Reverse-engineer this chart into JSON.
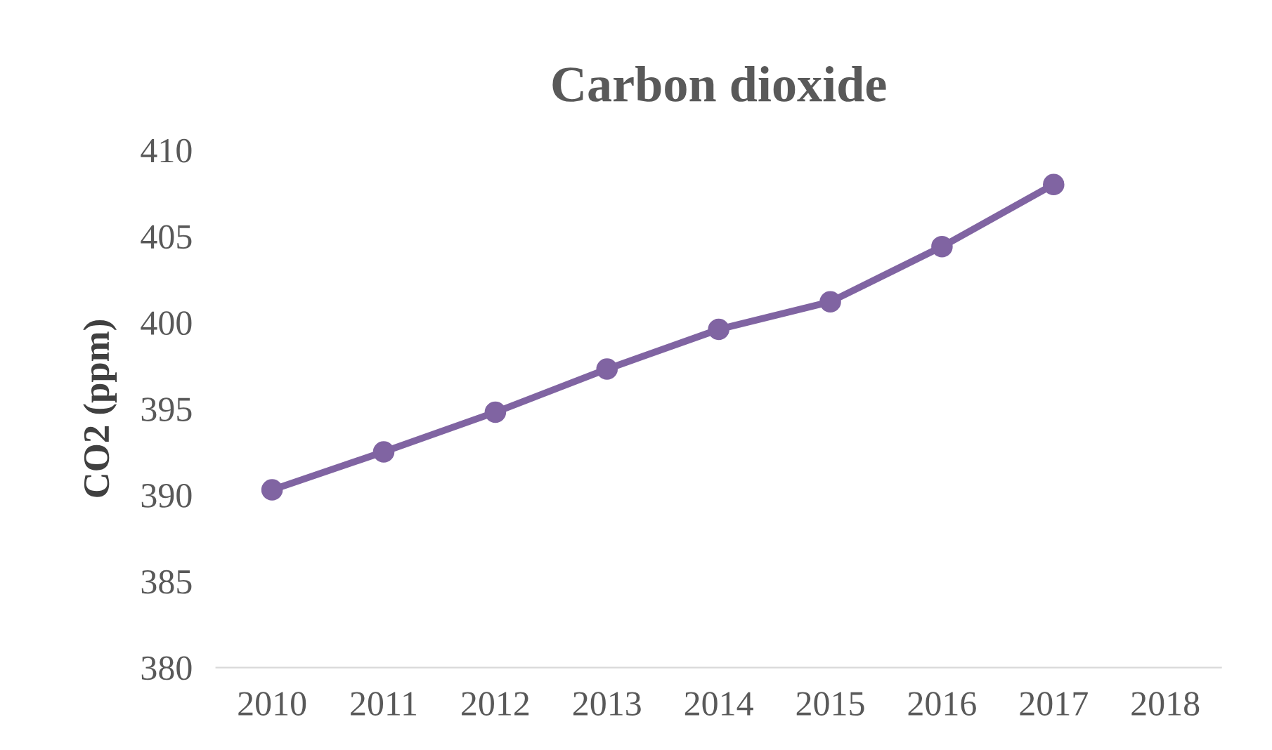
{
  "chart_data": {
    "type": "line",
    "title": "Carbon dioxide",
    "ylabel": "CO2 (ppm)",
    "categories": [
      "2010",
      "2011",
      "2012",
      "2013",
      "2014",
      "2015",
      "2016",
      "2017",
      "2018"
    ],
    "series": [
      {
        "color": "#8064a2",
        "values": [
          390.3,
          392.5,
          394.8,
          397.3,
          399.6,
          401.2,
          404.4,
          408.0,
          null
        ]
      }
    ],
    "ylim": [
      380,
      410
    ],
    "yticks": [
      380,
      385,
      390,
      395,
      400,
      405,
      410
    ],
    "grid": false,
    "legend": false,
    "marker": "circle",
    "line_style": "solid"
  }
}
